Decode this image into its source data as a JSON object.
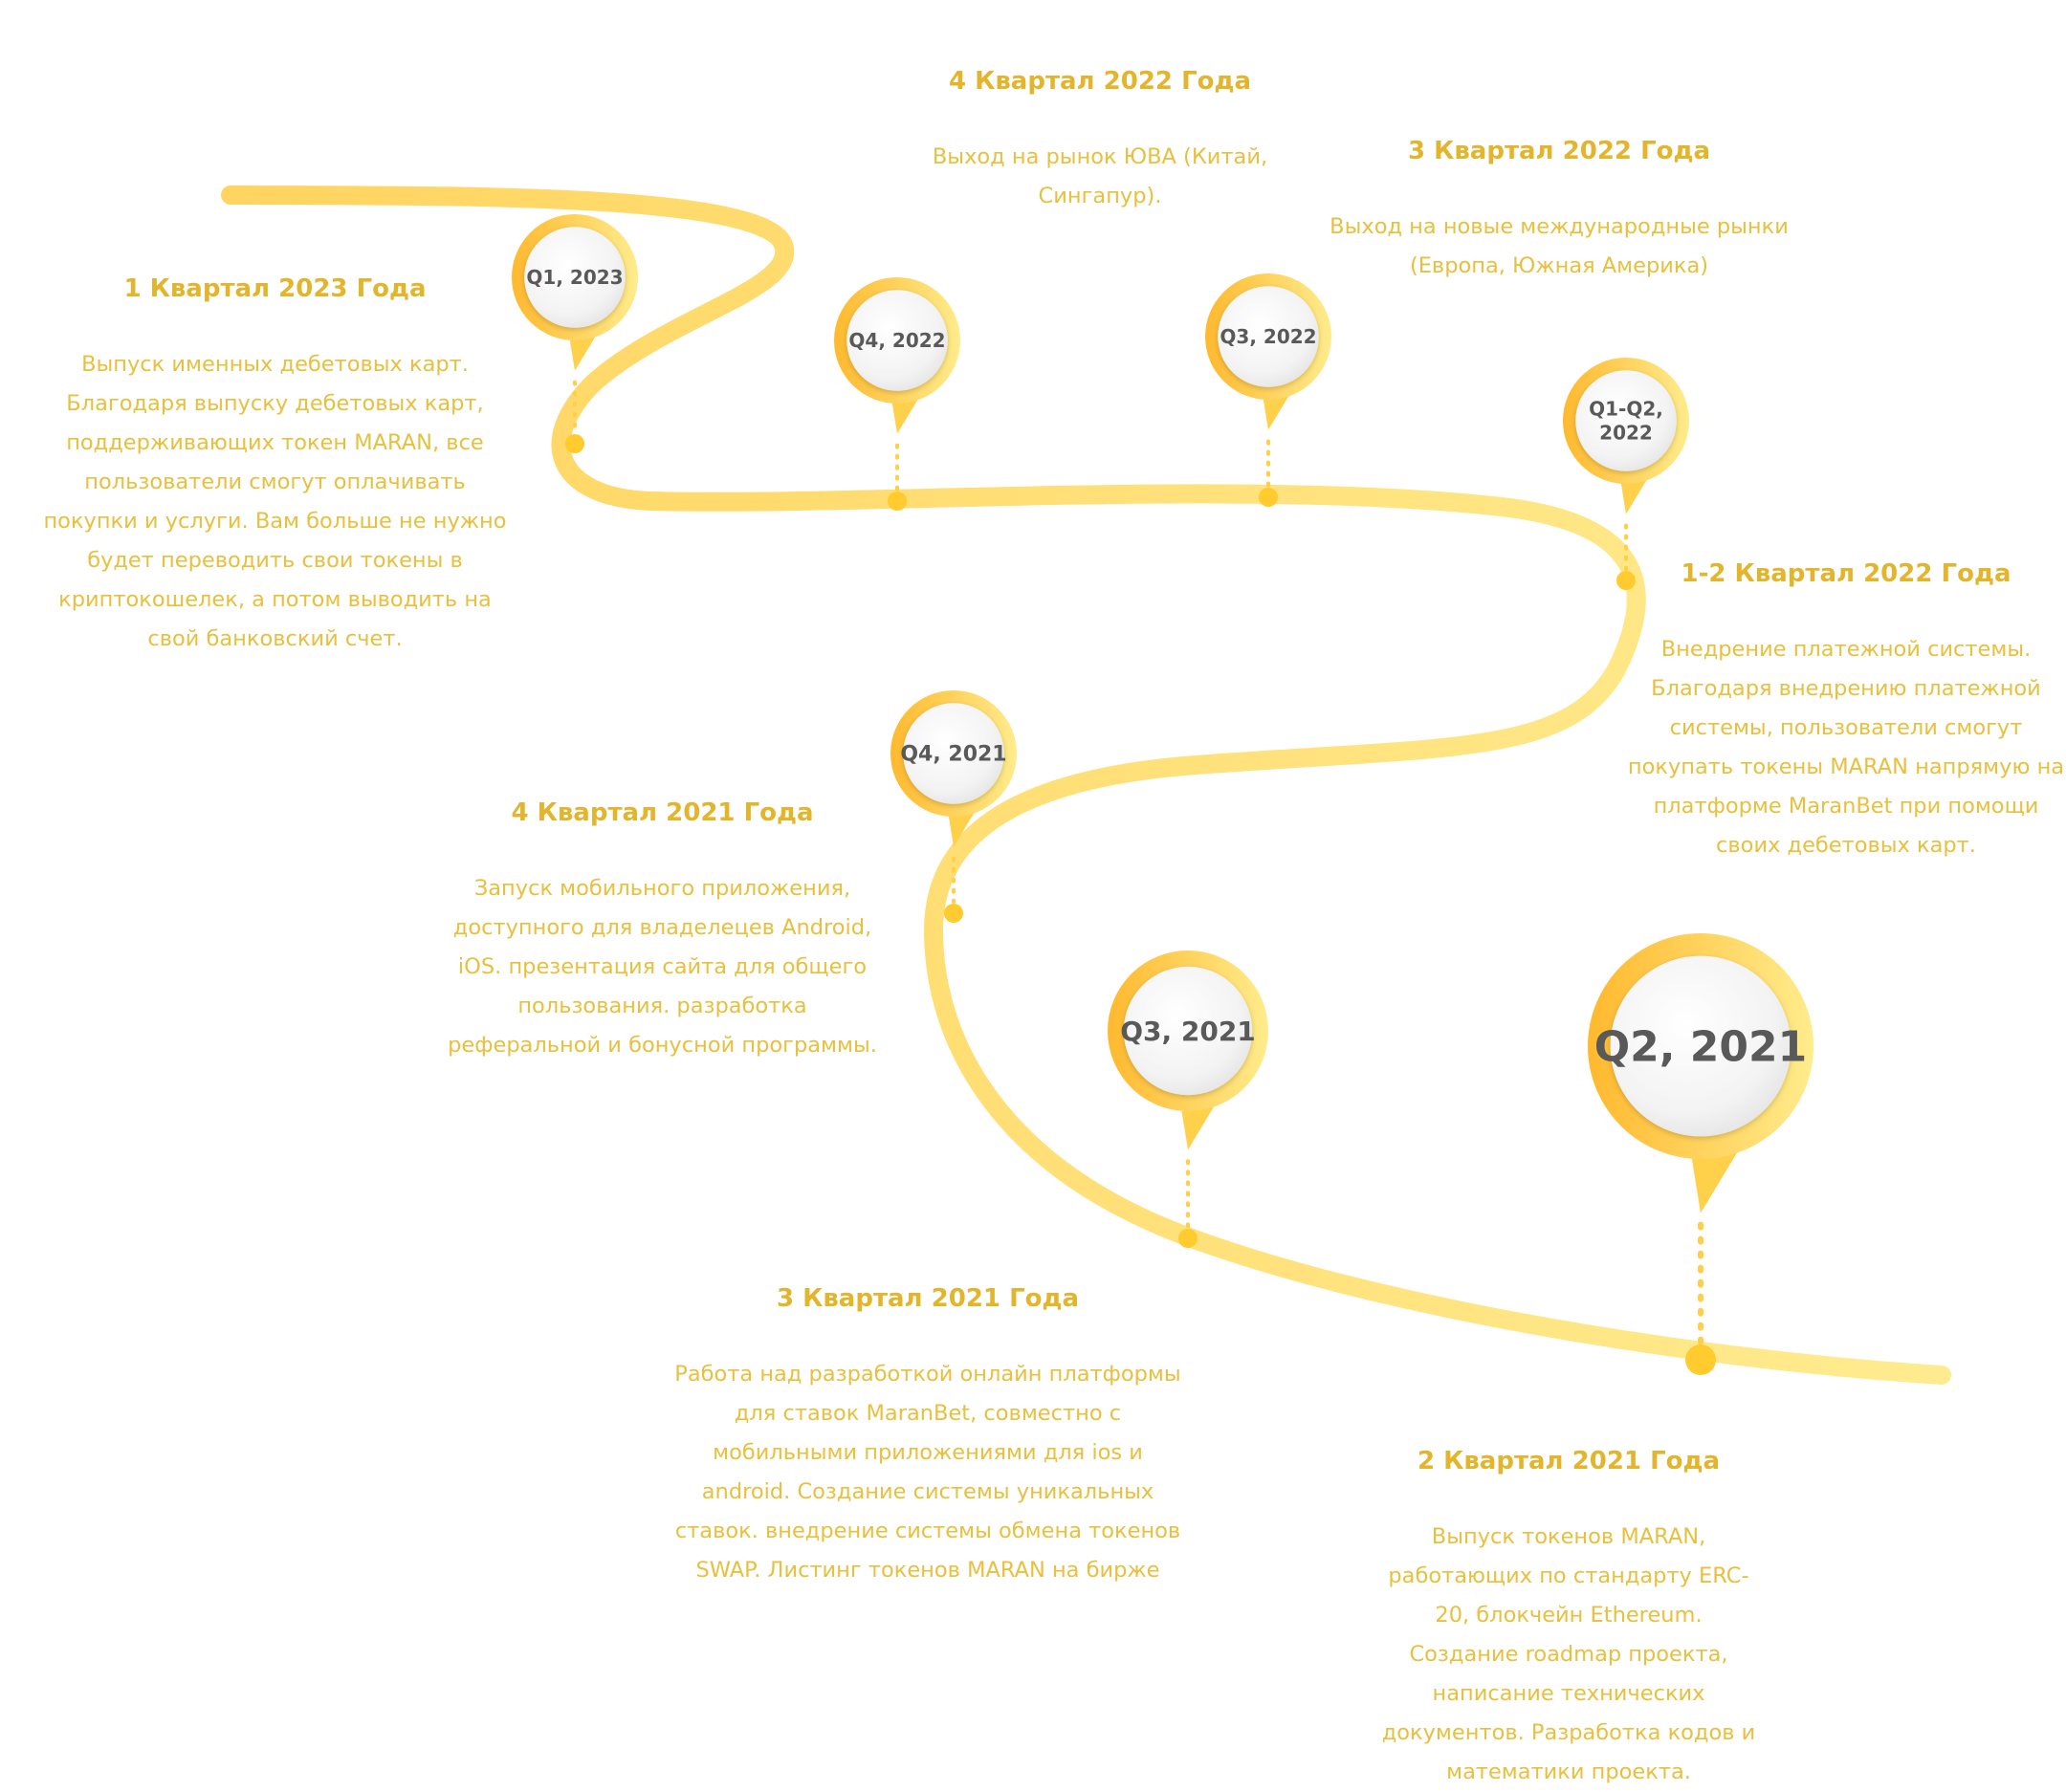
{
  "colors": {
    "accent": "#FFC23A",
    "accent_light": "#FFEA8A",
    "title_text": "#E3B52C",
    "body_text": "#E8C03E",
    "pin_label_text": "#595959"
  },
  "pins": [
    {
      "id": "q1-2023",
      "label": "Q1, 2023"
    },
    {
      "id": "q4-2022",
      "label": "Q4, 2022"
    },
    {
      "id": "q3-2022",
      "label": "Q3, 2022"
    },
    {
      "id": "q1q2-2022",
      "label_lines": [
        "Q1-Q2,",
        "2022"
      ]
    },
    {
      "id": "q4-2021",
      "label": "Q4, 2021"
    },
    {
      "id": "q3-2021",
      "label": "Q3, 2021"
    },
    {
      "id": "q2-2021",
      "label": "Q2, 2021"
    }
  ],
  "milestones": {
    "q1_2023": {
      "title": "1 Квартал 2023 Года",
      "text": "Выпуск именных дебетовых карт. Благодаря выпуску дебетовых карт, поддерживающих токен MARAN, все пользователи смогут оплачивать покупки и услуги. Вам больше не нужно будет переводить свои токены в криптокошелек, а потом выводить на свой банковский счет."
    },
    "q4_2022": {
      "title": "4 Квартал 2022 Года",
      "text": "Выход на рынок ЮВА (Китай, Сингапур)."
    },
    "q3_2022": {
      "title": "3 Квартал 2022 Года",
      "text": "Выход на новые международные рынки (Европа, Южная Америка)"
    },
    "q1q2_2022": {
      "title": "1-2 Квартал 2022 Года",
      "text": "Внедрение платежной системы. Благодаря внедрению платежной системы, пользователи смогут покупать токены MARAN напрямую на платформе MaranBet при помощи своих дебетовых карт."
    },
    "q4_2021": {
      "title": "4 Квартал 2021 Года",
      "text": "Запуск мобильного приложения, доступного для владелецев Android, iOS. презентация сайта для общего пользования. разработка реферальной и бонусной программы."
    },
    "q3_2021": {
      "title": "3 Квартал 2021 Года",
      "text": "Работа над разработкой онлайн платформы для ставок MaranBet, совместно с мобильными приложениями для ios и android. Создание системы уникальных ставок. внедрение системы обмена токенов SWAP. Листинг токенов MARAN на бирже"
    },
    "q2_2021": {
      "title": "2 Квартал 2021 Года",
      "text": "Выпуск токенов MARAN, работающих по стандарту ERC-20, блокчейн Ethereum. Создание roadmap проекта, написание технических документов. Разработка кодов и математики проекта."
    }
  }
}
